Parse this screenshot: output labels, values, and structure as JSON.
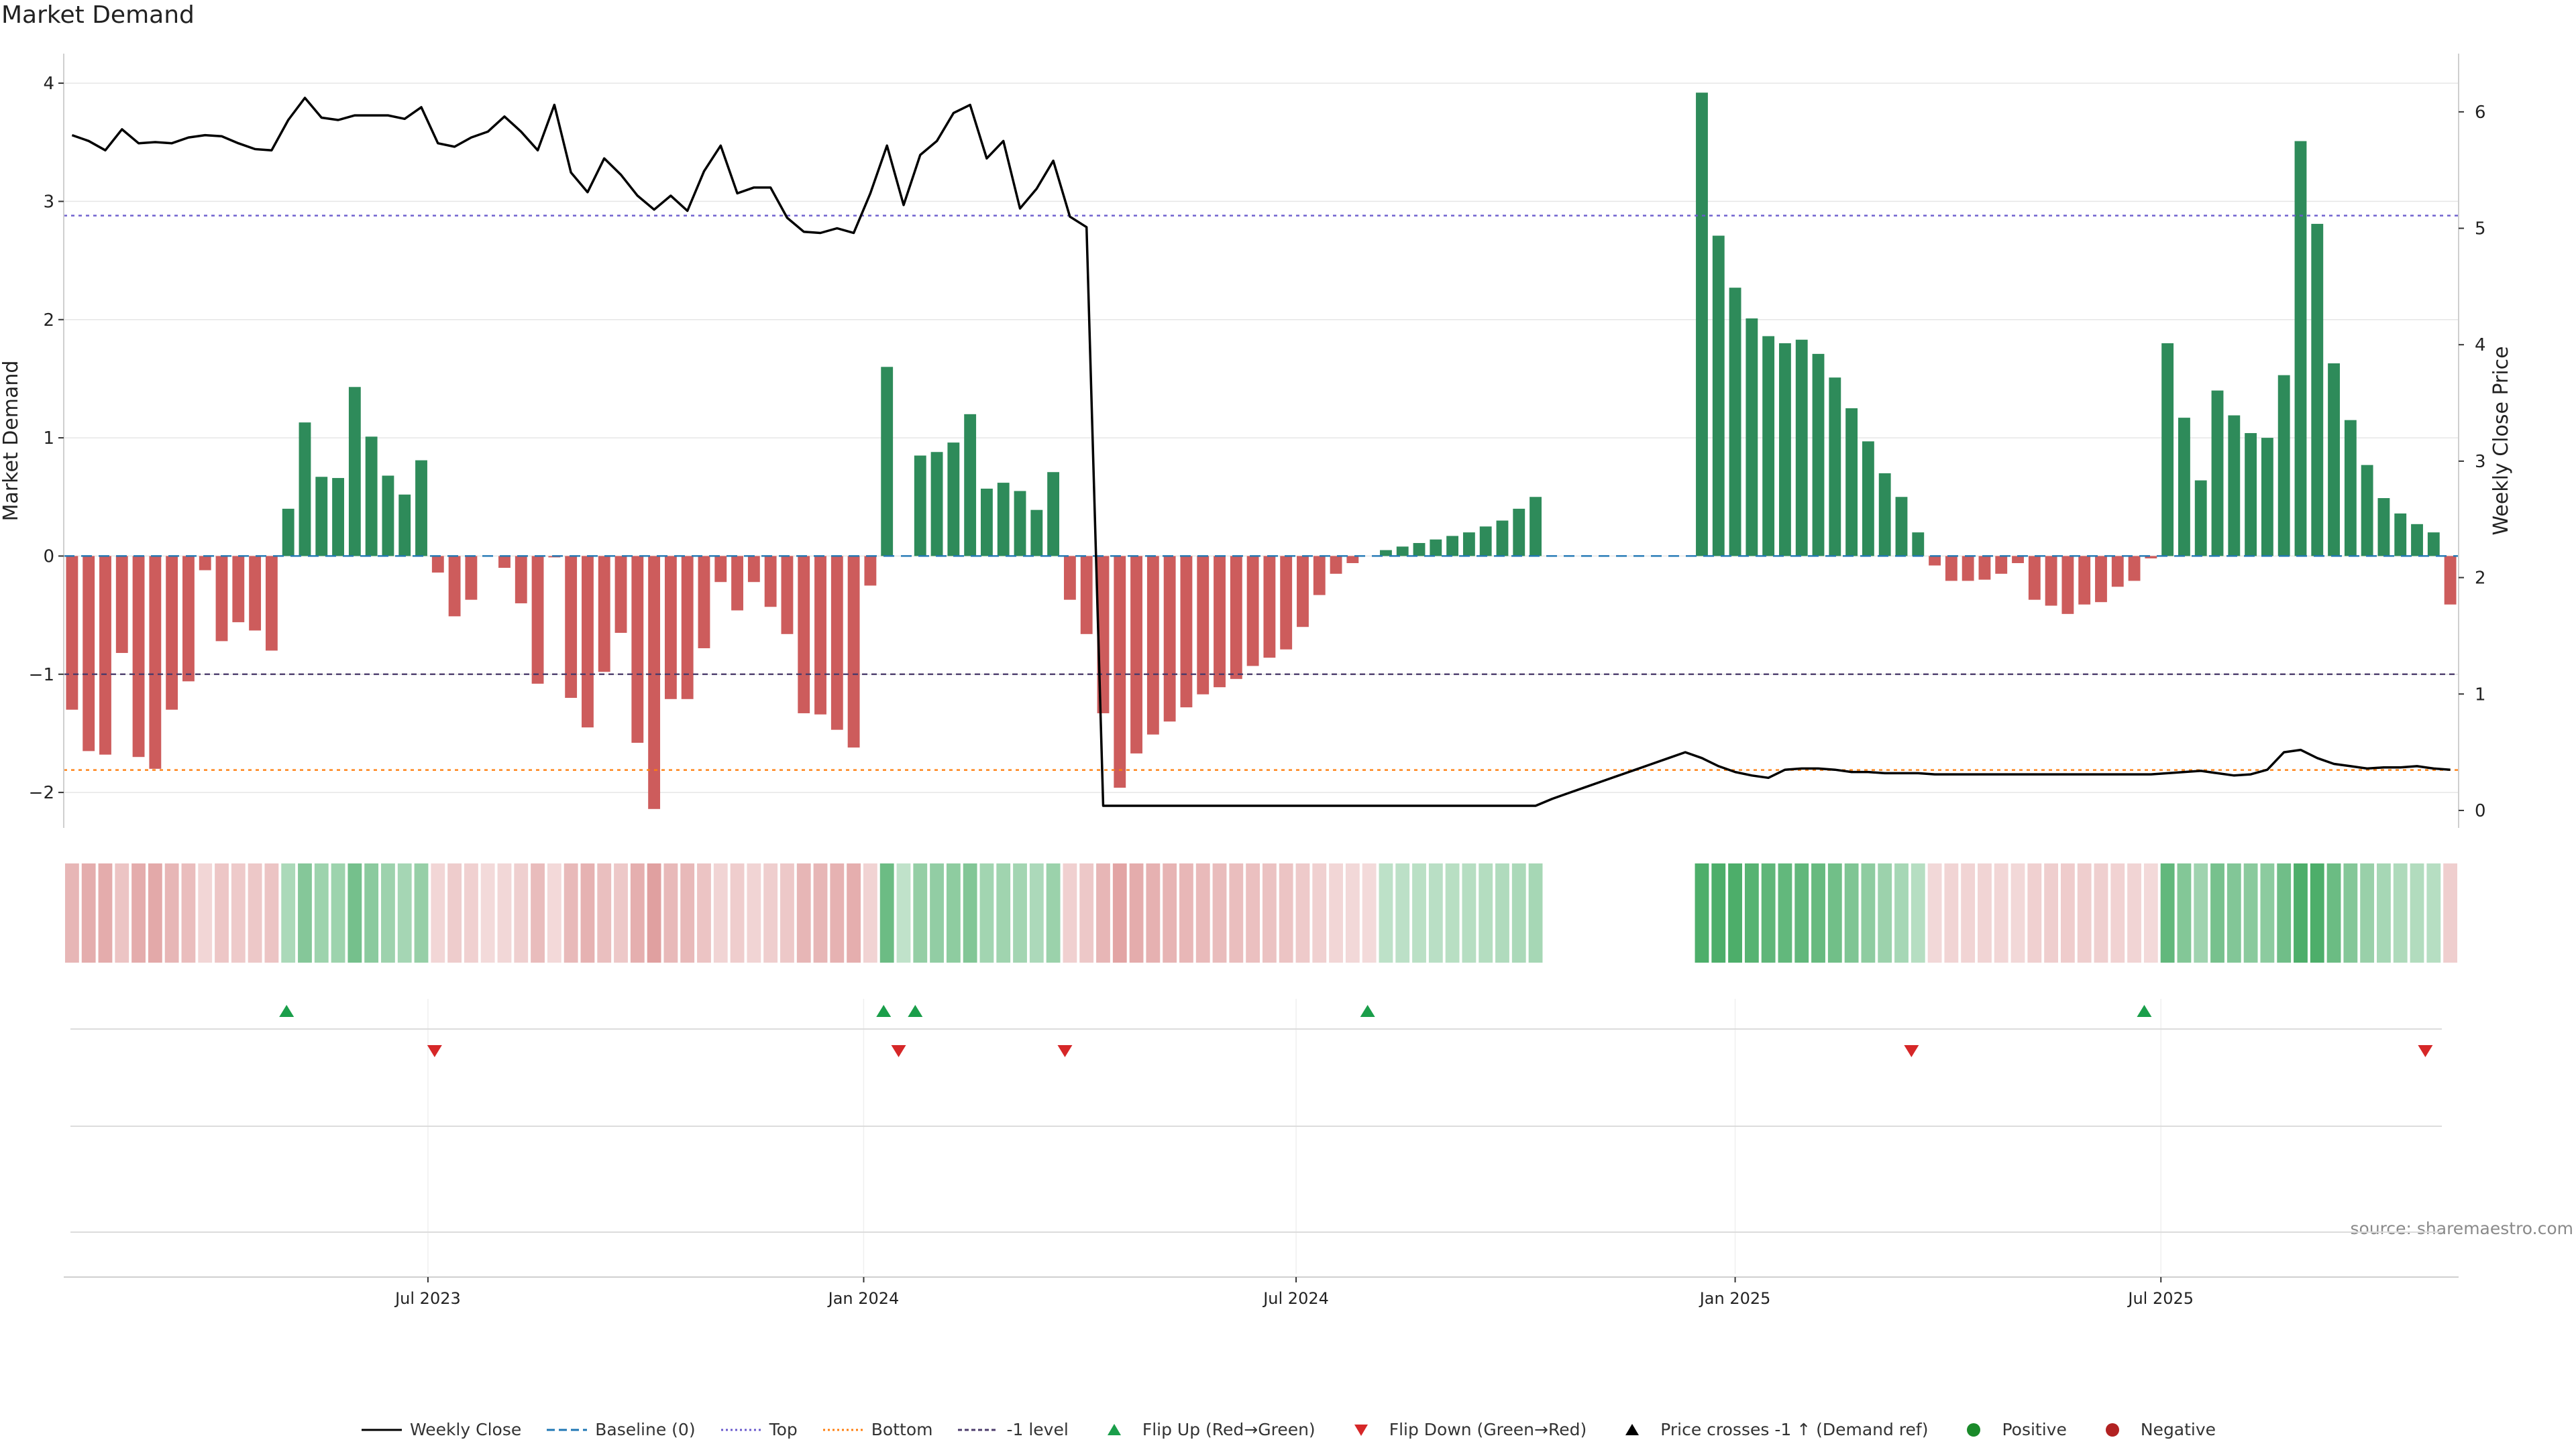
{
  "chart_data": {
    "type": "bar",
    "title": "Market Demand",
    "ylabel_left": "Market Demand",
    "ylabel_right": "Weekly Close Price",
    "source": "source: sharemaestro.com",
    "ylim_left": [
      -2.3,
      4.25
    ],
    "ylim_right": [
      -0.15,
      6.5
    ],
    "yticks_left": [
      "4",
      "3",
      "2",
      "1",
      "0",
      "−1",
      "−2"
    ],
    "yticks_left_values": [
      4,
      3,
      2,
      1,
      0,
      -1,
      -2
    ],
    "yticks_right": [
      "6",
      "5",
      "4",
      "3",
      "2",
      "1",
      "0"
    ],
    "yticks_right_values": [
      6,
      5,
      4,
      3,
      2,
      1,
      0
    ],
    "x_tick_labels": [
      "Jul 2023",
      "Jan 2024",
      "Jul 2024",
      "Jan 2025",
      "Jul 2025"
    ],
    "x_tick_weeks": [
      21.9,
      48.1,
      74.1,
      100.5,
      126.1
    ],
    "reference_lines": [
      {
        "name": "Baseline (0)",
        "value": 0,
        "color": "#1f77b4",
        "style": "dashed"
      },
      {
        "name": "Top",
        "value": 2.88,
        "color": "#6a5acd",
        "style": "dotted"
      },
      {
        "name": "Bottom",
        "value": -1.81,
        "color": "#ff7f0e",
        "style": "dotted"
      },
      {
        "name": "-1 level",
        "value": -1.0,
        "color": "#4b3b6b",
        "style": "dashed"
      }
    ],
    "demand": [
      -1.3,
      -1.65,
      -1.68,
      -0.82,
      -1.7,
      -1.8,
      -1.3,
      -1.06,
      -0.12,
      -0.72,
      -0.56,
      -0.63,
      -0.8,
      0.4,
      1.13,
      0.67,
      0.66,
      1.43,
      1.01,
      0.68,
      0.52,
      0.81,
      -0.14,
      -0.51,
      -0.37,
      0.0,
      -0.1,
      -0.4,
      -1.08,
      -0.01,
      -1.2,
      -1.45,
      -0.98,
      -0.65,
      -1.58,
      -2.14,
      -1.21,
      -1.21,
      -0.78,
      -0.22,
      -0.46,
      -0.22,
      -0.43,
      -0.66,
      -1.33,
      -1.34,
      -1.47,
      -1.62,
      -0.25,
      1.6,
      0.0,
      0.85,
      0.88,
      0.96,
      1.2,
      0.57,
      0.62,
      0.55,
      0.39,
      0.71,
      -0.37,
      -0.66,
      -1.33,
      -1.96,
      -1.67,
      -1.51,
      -1.4,
      -1.28,
      -1.17,
      -1.11,
      -1.04,
      -0.93,
      -0.86,
      -0.79,
      -0.6,
      -0.33,
      -0.15,
      -0.06,
      0.0,
      0.05,
      0.08,
      0.11,
      0.14,
      0.17,
      0.2,
      0.25,
      0.3,
      0.4,
      0.5,
      0,
      0,
      0,
      0,
      0,
      0,
      0,
      0,
      0,
      3.92,
      2.71,
      2.27,
      2.01,
      1.86,
      1.8,
      1.83,
      1.71,
      1.51,
      1.25,
      0.97,
      0.7,
      0.5,
      0.2,
      -0.08,
      -0.21,
      -0.21,
      -0.2,
      -0.15,
      -0.06,
      -0.37,
      -0.42,
      -0.49,
      -0.41,
      -0.39,
      -0.26,
      -0.21,
      -0.02,
      1.8,
      1.17,
      0.64,
      1.4,
      1.19,
      1.04,
      1.0,
      1.53,
      3.51,
      2.81,
      1.63,
      1.15,
      0.77,
      0.49,
      0.36,
      0.27,
      0.2,
      -0.41
    ],
    "price": [
      5.8,
      5.75,
      5.67,
      5.85,
      5.73,
      5.74,
      5.73,
      5.78,
      5.8,
      5.79,
      5.73,
      5.68,
      5.67,
      5.93,
      6.12,
      5.95,
      5.93,
      5.97,
      5.97,
      5.97,
      5.94,
      6.04,
      5.73,
      5.7,
      5.78,
      5.83,
      5.96,
      5.83,
      5.67,
      6.06,
      5.48,
      5.31,
      5.6,
      5.46,
      5.28,
      5.16,
      5.28,
      5.15,
      5.49,
      5.71,
      5.3,
      5.35,
      5.35,
      5.09,
      4.97,
      4.96,
      5.0,
      4.96,
      5.3,
      5.71,
      5.2,
      5.63,
      5.75,
      5.99,
      6.06,
      5.6,
      5.75,
      5.17,
      5.34,
      5.58,
      5.1,
      5.01,
      0.04,
      0.04,
      0.04,
      0.04,
      0.04,
      0.04,
      0.04,
      0.04,
      0.04,
      0.04,
      0.04,
      0.04,
      0.04,
      0.04,
      0.04,
      0.04,
      0.04,
      0.04,
      0.04,
      0.04,
      0.04,
      0.04,
      0.04,
      0.04,
      0.04,
      0.04,
      0.04,
      0.1,
      0.15,
      0.2,
      0.25,
      0.3,
      0.35,
      0.4,
      0.45,
      0.5,
      0.45,
      0.38,
      0.33,
      0.3,
      0.28,
      0.35,
      0.36,
      0.36,
      0.35,
      0.33,
      0.33,
      0.32,
      0.32,
      0.32,
      0.31,
      0.31,
      0.31,
      0.31,
      0.31,
      0.31,
      0.31,
      0.31,
      0.31,
      0.31,
      0.31,
      0.31,
      0.31,
      0.31,
      0.32,
      0.33,
      0.34,
      0.32,
      0.3,
      0.31,
      0.35,
      0.5,
      0.52,
      0.45,
      0.4,
      0.38,
      0.36,
      0.37,
      0.37,
      0.38,
      0.36,
      0.35
    ],
    "flip_up_weeks": [
      13.4,
      49.3,
      51.2,
      78.4,
      125.1
    ],
    "flip_down_weeks": [
      22.3,
      50.2,
      60.2,
      111.1,
      142.0
    ],
    "legend": [
      "Weekly Close",
      "Baseline (0)",
      "Top",
      "Bottom",
      "-1 level",
      "Flip Up (Red→Green)",
      "Flip Down (Green→Red)",
      "Price crosses -1 ↑ (Demand ref)",
      "Positive",
      "Negative"
    ]
  },
  "colors": {
    "positive": "#2e8b5a",
    "negative": "#cd5c5c",
    "price": "#000000",
    "flip_up": "#1a9e4a",
    "flip_down": "#d62728",
    "grid": "#e6e6e6"
  }
}
